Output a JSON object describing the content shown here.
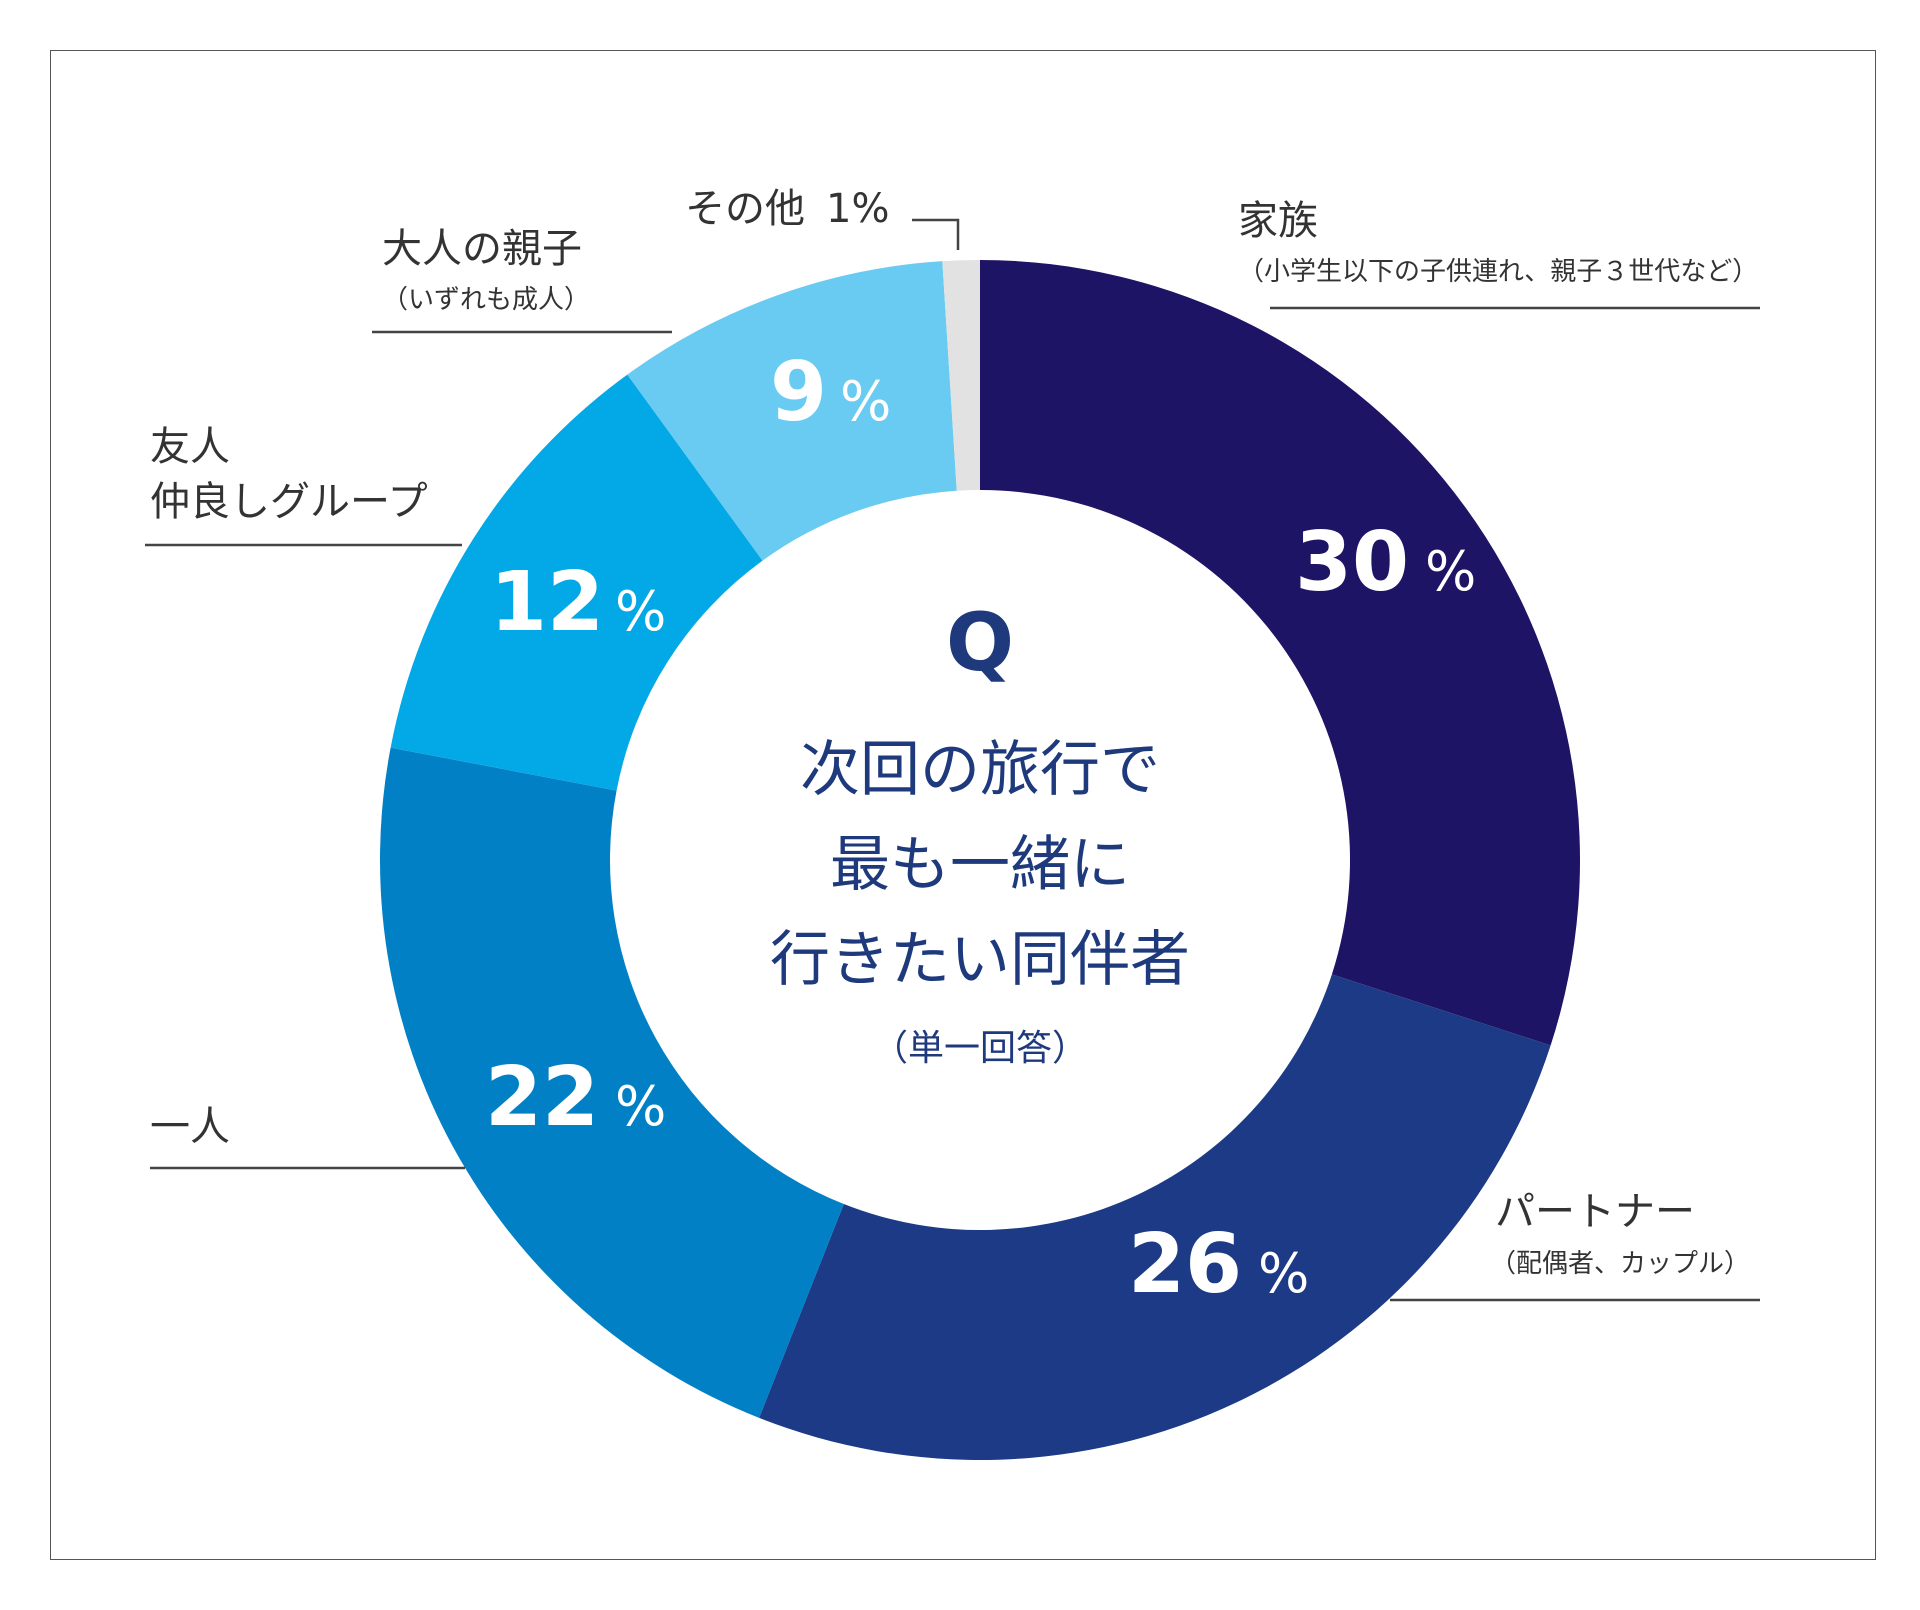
{
  "chart_data": {
    "type": "pie",
    "variant": "donut",
    "center": {
      "q": "Q",
      "question_lines": [
        "次回の旅行で",
        "最も一緒に",
        "行きたい同伴者"
      ],
      "note": "（単一回答）"
    },
    "slices": [
      {
        "name": "家族",
        "sub": "（小学生以下の子供連れ、親子３世代など）",
        "value": 30,
        "value_label": "30",
        "color": "#1e1466"
      },
      {
        "name": "パートナー",
        "sub": "（配偶者、カップル）",
        "value": 26,
        "value_label": "26",
        "color": "#1c3a85"
      },
      {
        "name": "一人",
        "sub": "",
        "value": 22,
        "value_label": "22",
        "color": "#0180c6"
      },
      {
        "name": "友人",
        "name2": "仲良しグループ",
        "value": 12,
        "value_label": "12",
        "color": "#03a8e6"
      },
      {
        "name": "大人の親子",
        "sub": "（いずれも成人）",
        "value": 9,
        "value_label": "9",
        "color": "#6acbf2"
      },
      {
        "name": "その他",
        "sub": "",
        "value": 1,
        "value_label": "1%",
        "color": "#e2e2e2"
      }
    ],
    "percent_sign": "%"
  }
}
